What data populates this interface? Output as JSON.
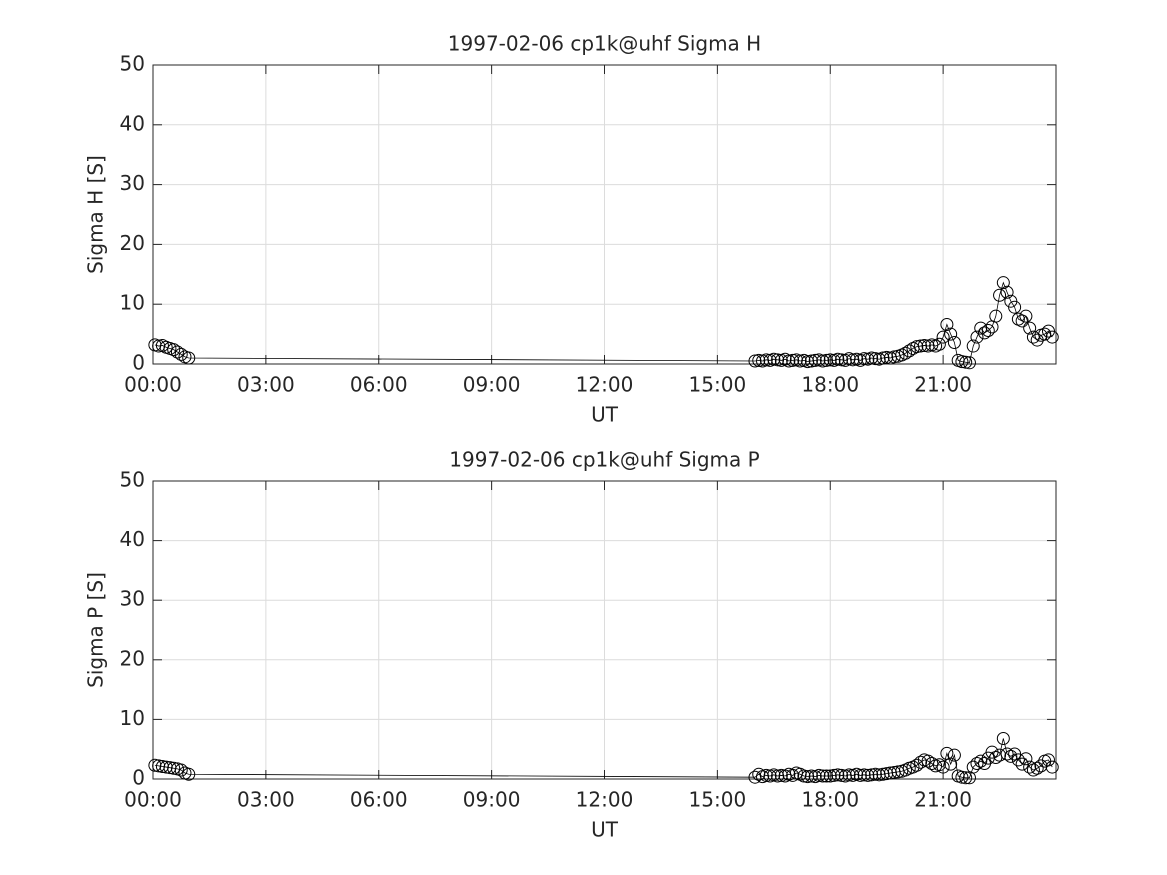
{
  "chart_data": [
    {
      "type": "line",
      "title": "1997-02-06  cp1k@uhf Sigma H",
      "xlabel": "UT",
      "ylabel": "Sigma H [S]",
      "color": "#000000",
      "marker": "circle",
      "grid": true,
      "xlim": [
        0,
        24
      ],
      "ylim": [
        0,
        50
      ],
      "xticks": [
        {
          "value": 0,
          "label": "00:00"
        },
        {
          "value": 3,
          "label": "03:00"
        },
        {
          "value": 6,
          "label": "06:00"
        },
        {
          "value": 9,
          "label": "09:00"
        },
        {
          "value": 12,
          "label": "12:00"
        },
        {
          "value": 15,
          "label": "15:00"
        },
        {
          "value": 18,
          "label": "18:00"
        },
        {
          "value": 21,
          "label": "21:00"
        }
      ],
      "yticks": [
        0,
        10,
        20,
        30,
        40,
        50
      ],
      "x": [
        0.05,
        0.15,
        0.25,
        0.35,
        0.45,
        0.55,
        0.65,
        0.75,
        0.85,
        0.95,
        16.0,
        16.1,
        16.2,
        16.3,
        16.4,
        16.5,
        16.6,
        16.7,
        16.8,
        16.9,
        17.0,
        17.1,
        17.2,
        17.3,
        17.4,
        17.5,
        17.6,
        17.7,
        17.8,
        17.9,
        18.0,
        18.1,
        18.2,
        18.3,
        18.4,
        18.5,
        18.6,
        18.7,
        18.8,
        18.9,
        19.0,
        19.1,
        19.2,
        19.3,
        19.4,
        19.5,
        19.6,
        19.7,
        19.8,
        19.9,
        20.0,
        20.1,
        20.2,
        20.3,
        20.4,
        20.5,
        20.6,
        20.7,
        20.8,
        20.9,
        21.0,
        21.1,
        21.2,
        21.3,
        21.4,
        21.5,
        21.6,
        21.7,
        21.8,
        21.9,
        22.0,
        22.1,
        22.2,
        22.3,
        22.4,
        22.5,
        22.6,
        22.7,
        22.8,
        22.9,
        23.0,
        23.1,
        23.2,
        23.3,
        23.4,
        23.5,
        23.6,
        23.7,
        23.8,
        23.9
      ],
      "values": [
        3.2,
        3.0,
        3.1,
        2.8,
        2.6,
        2.4,
        2.0,
        1.6,
        1.2,
        1.0,
        0.5,
        0.6,
        0.5,
        0.7,
        0.6,
        0.8,
        0.7,
        0.6,
        0.8,
        0.5,
        0.6,
        0.7,
        0.5,
        0.6,
        0.4,
        0.5,
        0.6,
        0.7,
        0.5,
        0.6,
        0.7,
        0.6,
        0.8,
        0.7,
        0.6,
        0.9,
        0.7,
        0.8,
        0.6,
        0.9,
        0.8,
        1.0,
        0.9,
        0.8,
        1.0,
        1.1,
        1.0,
        1.2,
        1.3,
        1.5,
        1.8,
        2.2,
        2.6,
        2.9,
        3.0,
        3.1,
        3.0,
        3.2,
        3.0,
        3.3,
        4.5,
        6.6,
        5.0,
        3.6,
        0.6,
        0.4,
        0.3,
        0.2,
        3.0,
        4.5,
        6.0,
        5.2,
        5.6,
        6.2,
        8.0,
        11.5,
        13.6,
        12.0,
        10.5,
        9.5,
        7.5,
        7.2,
        8.0,
        6.0,
        4.5,
        4.0,
        4.8,
        5.0,
        5.5,
        4.5
      ]
    },
    {
      "type": "line",
      "title": "1997-02-06  cp1k@uhf Sigma P",
      "xlabel": "UT",
      "ylabel": "Sigma P [S]",
      "color": "#000000",
      "marker": "circle",
      "grid": true,
      "xlim": [
        0,
        24
      ],
      "ylim": [
        0,
        50
      ],
      "xticks": [
        {
          "value": 0,
          "label": "00:00"
        },
        {
          "value": 3,
          "label": "03:00"
        },
        {
          "value": 6,
          "label": "06:00"
        },
        {
          "value": 9,
          "label": "09:00"
        },
        {
          "value": 12,
          "label": "12:00"
        },
        {
          "value": 15,
          "label": "15:00"
        },
        {
          "value": 18,
          "label": "18:00"
        },
        {
          "value": 21,
          "label": "21:00"
        }
      ],
      "yticks": [
        0,
        10,
        20,
        30,
        40,
        50
      ],
      "x": [
        0.05,
        0.15,
        0.25,
        0.35,
        0.45,
        0.55,
        0.65,
        0.75,
        0.85,
        0.95,
        16.0,
        16.1,
        16.2,
        16.3,
        16.4,
        16.5,
        16.6,
        16.7,
        16.8,
        16.9,
        17.0,
        17.1,
        17.2,
        17.3,
        17.4,
        17.5,
        17.6,
        17.7,
        17.8,
        17.9,
        18.0,
        18.1,
        18.2,
        18.3,
        18.4,
        18.5,
        18.6,
        18.7,
        18.8,
        18.9,
        19.0,
        19.1,
        19.2,
        19.3,
        19.4,
        19.5,
        19.6,
        19.7,
        19.8,
        19.9,
        20.0,
        20.1,
        20.2,
        20.3,
        20.4,
        20.5,
        20.6,
        20.7,
        20.8,
        20.9,
        21.0,
        21.1,
        21.2,
        21.3,
        21.4,
        21.5,
        21.6,
        21.7,
        21.8,
        21.9,
        22.0,
        22.1,
        22.2,
        22.3,
        22.4,
        22.5,
        22.6,
        22.7,
        22.8,
        22.9,
        23.0,
        23.1,
        23.2,
        23.3,
        23.4,
        23.5,
        23.6,
        23.7,
        23.8,
        23.9
      ],
      "values": [
        2.3,
        2.2,
        2.1,
        2.0,
        1.9,
        1.8,
        1.7,
        1.5,
        1.0,
        0.8,
        0.3,
        0.8,
        0.4,
        0.6,
        0.5,
        0.7,
        0.5,
        0.6,
        0.5,
        0.8,
        0.6,
        1.0,
        0.8,
        0.5,
        0.4,
        0.5,
        0.4,
        0.6,
        0.5,
        0.5,
        0.5,
        0.6,
        0.7,
        0.6,
        0.5,
        0.7,
        0.6,
        0.8,
        0.6,
        0.7,
        0.6,
        0.7,
        0.8,
        0.7,
        0.8,
        0.9,
        1.0,
        1.1,
        1.2,
        1.3,
        1.5,
        1.8,
        2.0,
        2.3,
        2.8,
        3.2,
        3.0,
        2.6,
        2.2,
        2.4,
        2.0,
        4.3,
        2.5,
        4.0,
        0.5,
        0.3,
        0.2,
        0.2,
        2.0,
        2.6,
        3.0,
        2.6,
        3.5,
        4.5,
        3.6,
        4.0,
        6.8,
        4.2,
        3.8,
        4.2,
        3.2,
        2.5,
        3.4,
        2.0,
        1.5,
        1.8,
        2.2,
        3.0,
        3.2,
        2.0
      ]
    }
  ]
}
